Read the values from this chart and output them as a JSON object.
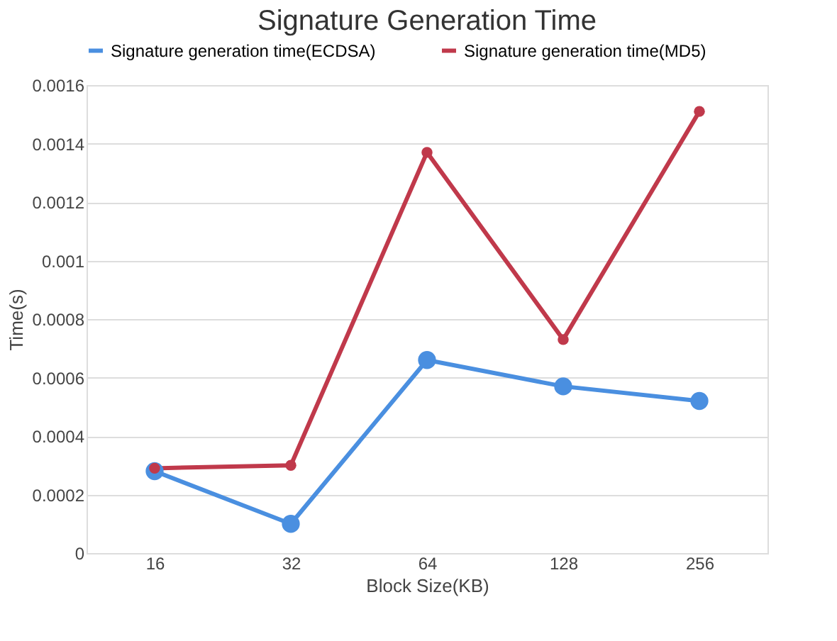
{
  "chart_data": {
    "type": "line",
    "title": "Signature Generation Time",
    "xlabel": "Block Size(KB)",
    "ylabel": "Time(s)",
    "categories": [
      "16",
      "32",
      "64",
      "128",
      "256"
    ],
    "series": [
      {
        "name": "Signature generation time(ECDSA)",
        "color": "#4a8fe0",
        "values": [
          0.00028,
          0.0001,
          0.00066,
          0.00057,
          0.00052
        ]
      },
      {
        "name": "Signature generation time(MD5)",
        "color": "#c0394b",
        "values": [
          0.00029,
          0.0003,
          0.00137,
          0.00073,
          0.00151
        ]
      }
    ],
    "ylim": [
      0,
      0.0016
    ],
    "yticks": [
      0,
      0.0002,
      0.0004,
      0.0006,
      0.0008,
      0.001,
      0.0012,
      0.0014,
      0.0016
    ],
    "grid": "y",
    "legend": "top",
    "marker": "circle",
    "line_style": "solid"
  }
}
